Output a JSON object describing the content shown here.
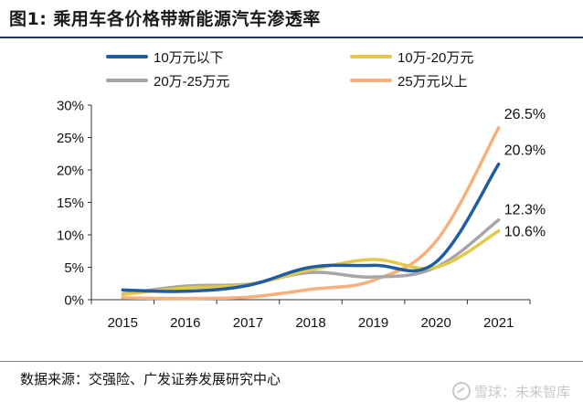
{
  "title": "图1:  乘用车各价格带新能源汽车渗透率",
  "source": "数据来源：交强险、广发证券发展研究中心",
  "watermark": {
    "text": "雪球：未来智库",
    "icon": "snowball-logo-icon"
  },
  "chart_data": {
    "type": "line",
    "x": [
      "2015",
      "2016",
      "2017",
      "2018",
      "2019",
      "2020",
      "2021"
    ],
    "y_ticks": [
      "0%",
      "5%",
      "10%",
      "15%",
      "20%",
      "25%",
      "30%"
    ],
    "ylim": [
      0,
      30
    ],
    "grid": false,
    "legend_position": "top",
    "series": [
      {
        "name": "10万元以下",
        "color": "#1f5da0",
        "values": [
          1.5,
          1.3,
          2.2,
          5.0,
          5.3,
          5.8,
          20.9
        ],
        "end_label": "20.9%"
      },
      {
        "name": "10万-20万元",
        "color": "#e3c84a",
        "values": [
          0.8,
          1.8,
          2.3,
          4.6,
          6.2,
          5.0,
          10.6
        ],
        "end_label": "10.6%"
      },
      {
        "name": "20万-25万元",
        "color": "#a6a6a6",
        "values": [
          0.9,
          2.1,
          2.4,
          4.2,
          3.5,
          5.0,
          12.3
        ],
        "end_label": "12.3%"
      },
      {
        "name": "25万元以上",
        "color": "#f7b07c",
        "values": [
          0.3,
          0.2,
          0.4,
          1.6,
          3.0,
          9.0,
          26.5
        ],
        "end_label": "26.5%"
      }
    ]
  }
}
